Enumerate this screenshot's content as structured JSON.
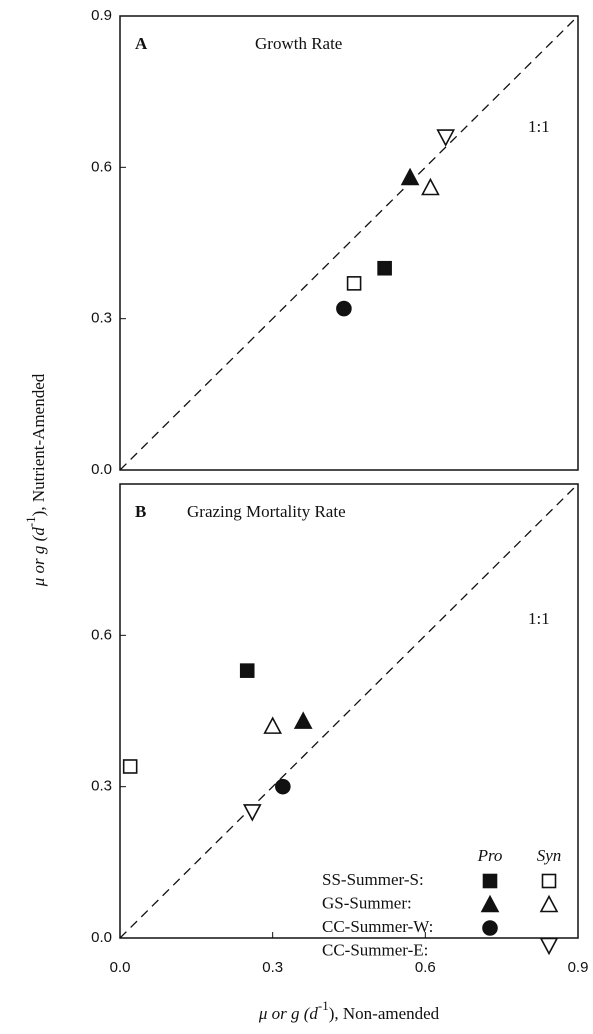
{
  "axis_labels": {
    "y": {
      "prefix": "μ or g  (d",
      "sup": "-1",
      "suffix": "),  Nutrient-Amended"
    },
    "x": {
      "prefix": "μ or g  (d",
      "sup": "-1",
      "suffix": "),  Non-amended"
    }
  },
  "chart_data": [
    {
      "type": "scatter",
      "label": "A",
      "title": "Growth Rate",
      "annotation": "1:1",
      "xlim": [
        0,
        0.9
      ],
      "ylim": [
        0,
        0.9
      ],
      "yticks": [
        {
          "value": 0,
          "label": "0.0"
        },
        0.3,
        0.6,
        0.9
      ],
      "series": [
        {
          "marker": "square",
          "pro": {
            "x": 0.52,
            "y": 0.4
          },
          "syn": {
            "x": 0.46,
            "y": 0.37
          }
        },
        {
          "marker": "triangle",
          "pro": {
            "x": 0.57,
            "y": 0.58
          },
          "syn": {
            "x": 0.61,
            "y": 0.56
          }
        },
        {
          "marker": "circle",
          "pro": {
            "x": 0.44,
            "y": 0.32
          }
        },
        {
          "marker": "triangle-down",
          "syn": {
            "x": 0.64,
            "y": 0.66
          }
        }
      ]
    },
    {
      "type": "scatter",
      "label": "B",
      "title": "Grazing Mortality Rate",
      "annotation": "1:1",
      "xlim": [
        0,
        0.9
      ],
      "ylim": [
        0,
        0.9
      ],
      "xticks": [
        {
          "value": 0,
          "label": "0.0"
        },
        0.3,
        0.6,
        0.9
      ],
      "yticks": [
        {
          "value": 0,
          "label": "0.0"
        },
        0.3,
        0.6
      ],
      "legend": {
        "columns": [
          "Pro",
          "Syn"
        ]
      },
      "series": [
        {
          "name": "SS-Summer-S:",
          "marker": "square",
          "pro": {
            "x": 0.25,
            "y": 0.53
          },
          "syn": {
            "x": 0.02,
            "y": 0.34
          }
        },
        {
          "name": "GS-Summer:",
          "marker": "triangle",
          "pro": {
            "x": 0.36,
            "y": 0.43
          },
          "syn": {
            "x": 0.3,
            "y": 0.42
          }
        },
        {
          "name": "CC-Summer-W:",
          "marker": "circle",
          "pro": {
            "x": 0.32,
            "y": 0.3
          }
        },
        {
          "name": "CC-Summer-E:",
          "marker": "triangle-down",
          "syn": {
            "x": 0.26,
            "y": 0.25
          }
        }
      ]
    }
  ]
}
